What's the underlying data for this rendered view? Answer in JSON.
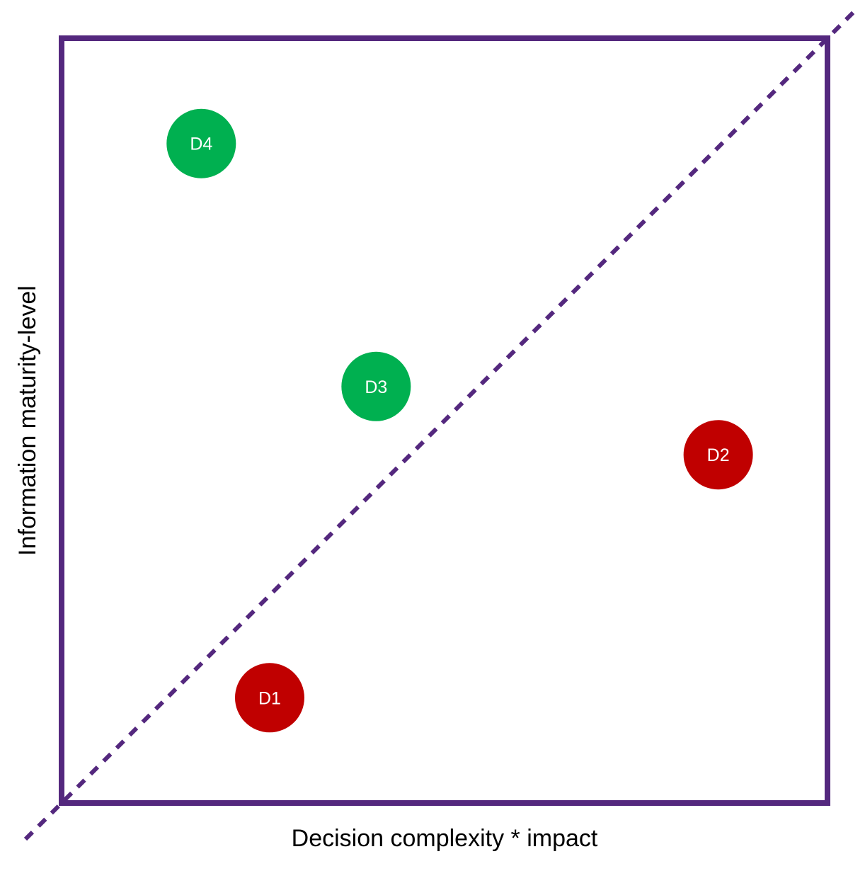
{
  "chart_data": {
    "type": "scatter",
    "xlabel": "Decision complexity * impact",
    "ylabel": "Information maturity-level",
    "grid": false,
    "reference_line": "diagonal, dashed",
    "points": [
      {
        "label": "D1",
        "x": 0.27,
        "y": 0.135,
        "color": "#c00000"
      },
      {
        "label": "D2",
        "x": 0.86,
        "y": 0.455,
        "color": "#c00000"
      },
      {
        "label": "D3",
        "x": 0.41,
        "y": 0.545,
        "color": "#00b050"
      },
      {
        "label": "D4",
        "x": 0.18,
        "y": 0.865,
        "color": "#00b050"
      }
    ]
  },
  "colors": {
    "frame": "#54287e",
    "diagonal": "#54287e",
    "below_line": "#c00000",
    "above_line": "#00b050"
  }
}
